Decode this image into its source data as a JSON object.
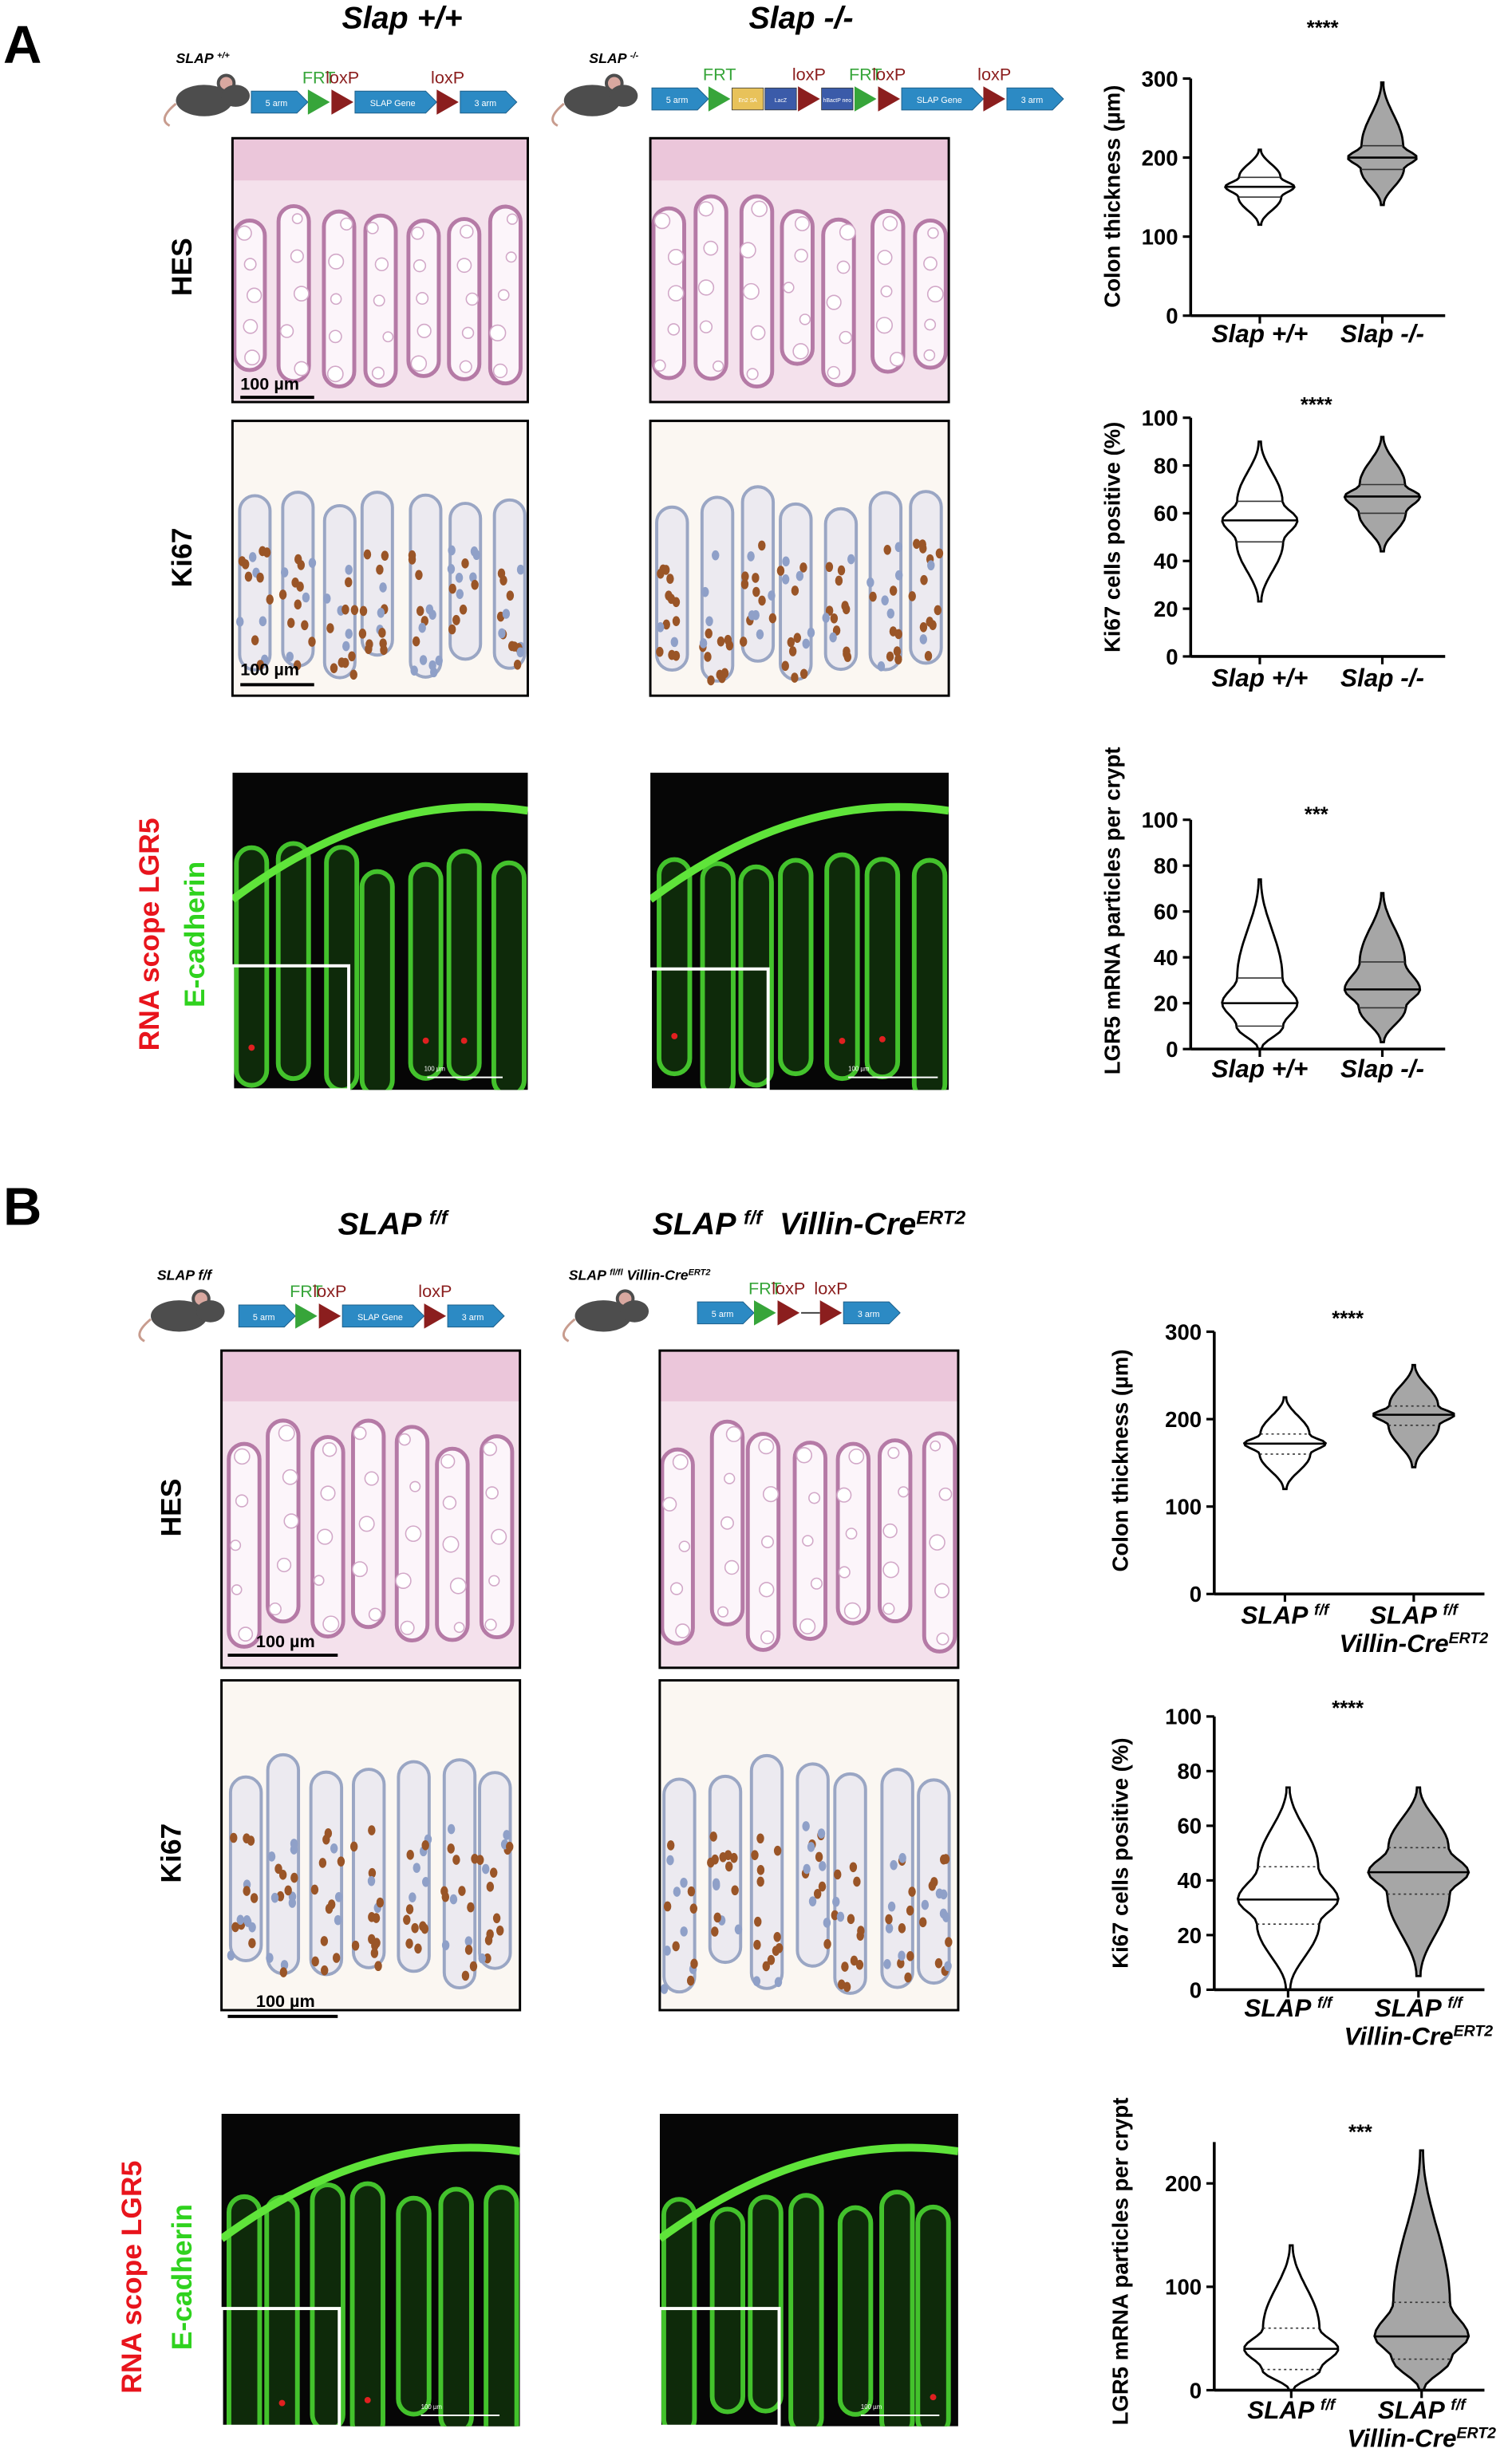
{
  "panels": [
    {
      "letter": "A",
      "columns": [
        {
          "title": [
            {
              "text": "Slap +/+"
            }
          ],
          "mouse": [
            {
              "text": "SLAP ",
              "sup": "+/+"
            }
          ],
          "construct": [
            {
              "kind": "arm",
              "label": "5 arm"
            },
            {
              "kind": "frt",
              "label": "FRT"
            },
            {
              "kind": "loxp",
              "label": "loxP"
            },
            {
              "kind": "gene",
              "label": "SLAP Gene"
            },
            {
              "kind": "loxp",
              "label": "loxP"
            },
            {
              "kind": "arm",
              "label": "3 arm"
            }
          ]
        },
        {
          "title": [
            {
              "text": "Slap -/-"
            }
          ],
          "mouse": [
            {
              "text": "SLAP ",
              "sup": "-/-"
            }
          ],
          "construct": [
            {
              "kind": "arm",
              "label": "5 arm"
            },
            {
              "kind": "frt",
              "label": "FRT"
            },
            {
              "kind": "box",
              "label": "En2 SA",
              "color": "#e8c25a"
            },
            {
              "kind": "box",
              "label": "LacZ",
              "color": "#3b5ba9"
            },
            {
              "kind": "loxp",
              "label": "loxP"
            },
            {
              "kind": "box",
              "label": "hBactP neo",
              "color": "#3b5ba9"
            },
            {
              "kind": "frt",
              "label": "FRT"
            },
            {
              "kind": "loxp",
              "label": "loxP"
            },
            {
              "kind": "gene",
              "label": "SLAP Gene"
            },
            {
              "kind": "loxp",
              "label": "loxP"
            },
            {
              "kind": "arm",
              "label": "3 arm"
            }
          ]
        }
      ],
      "rows": [
        [
          [
            {
              "text": "HES"
            }
          ]
        ],
        [
          [
            {
              "text": "Ki67"
            }
          ]
        ],
        [
          [
            {
              "text": "RNA scope LGR5",
              "color": "#e8141c"
            }
          ],
          [
            {
              "text": "E-cadherin",
              "color": "#2fd21e"
            }
          ]
        ]
      ],
      "scale_bars": [
        "100 µm",
        "100 µm",
        "100 µm",
        "100 µm"
      ]
    },
    {
      "letter": "B",
      "columns": [
        {
          "title": [
            {
              "text": "SLAP ",
              "sup": "f/f"
            }
          ],
          "mouse": [
            {
              "text": "SLAP f/f"
            }
          ],
          "construct": [
            {
              "kind": "arm",
              "label": "5 arm"
            },
            {
              "kind": "frt",
              "label": "FRT"
            },
            {
              "kind": "loxp",
              "label": "loxP"
            },
            {
              "kind": "gene",
              "label": "SLAP Gene"
            },
            {
              "kind": "loxp",
              "label": "loxP"
            },
            {
              "kind": "arm",
              "label": "3 arm"
            }
          ]
        },
        {
          "title": [
            {
              "text": "SLAP ",
              "sup": "f/f"
            },
            {
              "text": "  Villin-Cre",
              "sup": "ERT2"
            }
          ],
          "mouse": [
            {
              "text": "SLAP ",
              "sup": "fl/fl"
            },
            {
              "text": " Villin-Cre",
              "sup": "ERT2"
            }
          ],
          "construct": [
            {
              "kind": "arm",
              "label": "5 arm"
            },
            {
              "kind": "frt",
              "label": "FRT"
            },
            {
              "kind": "loxp",
              "label": "loxP"
            },
            {
              "kind": "loxp",
              "label": "loxP"
            },
            {
              "kind": "arm",
              "label": "3 arm"
            }
          ]
        }
      ],
      "rows": [
        [
          [
            {
              "text": "HES"
            }
          ]
        ],
        [
          [
            {
              "text": "Ki67"
            }
          ]
        ],
        [
          [
            {
              "text": "RNA scope LGR5",
              "color": "#e8141c"
            }
          ],
          [
            {
              "text": "E-cadherin",
              "color": "#2fd21e"
            }
          ]
        ]
      ],
      "scale_bars": [
        "100 µm",
        "100 µm",
        "100 µm",
        "100 µm"
      ]
    }
  ],
  "chart_data": [
    {
      "type": "violin",
      "y_label": "Colon thickness (µm)",
      "annotation": "****",
      "categories": [
        [
          [
            {
              "text": "Slap +/+"
            }
          ]
        ],
        [
          [
            {
              "text": "Slap -/-"
            }
          ]
        ]
      ],
      "min": [
        115,
        140
      ],
      "q1": [
        150,
        185
      ],
      "median": [
        163,
        200
      ],
      "q3": [
        175,
        215
      ],
      "max": [
        210,
        295
      ],
      "colors": [
        "#ffffff",
        "#a6a6a6"
      ],
      "quartile_style": "solid",
      "ylim": [
        0,
        300
      ],
      "yticks": [
        0,
        100,
        200,
        300
      ]
    },
    {
      "type": "violin",
      "y_label": "Ki67 cells positive (%)",
      "annotation": "****",
      "categories": [
        [
          [
            {
              "text": "Slap +/+"
            }
          ]
        ],
        [
          [
            {
              "text": "Slap -/-"
            }
          ]
        ]
      ],
      "min": [
        23,
        44
      ],
      "q1": [
        48,
        60
      ],
      "median": [
        57,
        67
      ],
      "q3": [
        65,
        72
      ],
      "max": [
        90,
        92
      ],
      "colors": [
        "#ffffff",
        "#a6a6a6"
      ],
      "quartile_style": "solid",
      "ylim": [
        0,
        100
      ],
      "yticks": [
        0,
        20,
        40,
        60,
        80,
        100
      ]
    },
    {
      "type": "violin",
      "y_label": "LGR5 mRNA particles per crypt",
      "annotation": "***",
      "categories": [
        [
          [
            {
              "text": "Slap +/+"
            }
          ]
        ],
        [
          [
            {
              "text": "Slap -/-"
            }
          ]
        ]
      ],
      "min": [
        0,
        3
      ],
      "q1": [
        10,
        18
      ],
      "median": [
        20,
        26
      ],
      "q3": [
        31,
        38
      ],
      "max": [
        74,
        68
      ],
      "colors": [
        "#ffffff",
        "#a6a6a6"
      ],
      "quartile_style": "solid",
      "ylim": [
        0,
        100
      ],
      "yticks": [
        0,
        20,
        40,
        60,
        80,
        100
      ]
    },
    {
      "type": "violin",
      "y_label": "Colon thickness (µm)",
      "annotation": "****",
      "categories": [
        [
          [
            {
              "text": "SLAP ",
              "sup": "f/f"
            }
          ]
        ],
        [
          [
            {
              "text": "SLAP ",
              "sup": "f/f"
            }
          ],
          [
            {
              "text": "Villin-Cre",
              "sup": "ERT2"
            }
          ]
        ]
      ],
      "min": [
        120,
        145
      ],
      "q1": [
        160,
        193
      ],
      "median": [
        172,
        205
      ],
      "q3": [
        183,
        215
      ],
      "max": [
        225,
        262
      ],
      "colors": [
        "#ffffff",
        "#a6a6a6"
      ],
      "quartile_style": "dotted",
      "ylim": [
        0,
        300
      ],
      "yticks": [
        0,
        100,
        200,
        300
      ]
    },
    {
      "type": "violin",
      "y_label": "Ki67 cells positive (%)",
      "annotation": "****",
      "categories": [
        [
          [
            {
              "text": "SLAP ",
              "sup": "f/f"
            }
          ]
        ],
        [
          [
            {
              "text": "SLAP ",
              "sup": "f/f"
            }
          ],
          [
            {
              "text": "Villin-Cre",
              "sup": "ERT2"
            }
          ]
        ]
      ],
      "min": [
        0,
        5
      ],
      "q1": [
        24,
        35
      ],
      "median": [
        33,
        43
      ],
      "q3": [
        45,
        52
      ],
      "max": [
        74,
        74
      ],
      "colors": [
        "#ffffff",
        "#a6a6a6"
      ],
      "quartile_style": "dotted",
      "ylim": [
        0,
        100
      ],
      "yticks": [
        0,
        20,
        40,
        60,
        80,
        100
      ]
    },
    {
      "type": "violin",
      "y_label": "LGR5 mRNA particles per crypt",
      "annotation": "***",
      "categories": [
        [
          [
            {
              "text": "SLAP ",
              "sup": "f/f"
            }
          ]
        ],
        [
          [
            {
              "text": "SLAP ",
              "sup": "f/f"
            }
          ],
          [
            {
              "text": "Villin-Cre",
              "sup": "ERT2"
            }
          ]
        ]
      ],
      "min": [
        0,
        0
      ],
      "q1": [
        20,
        30
      ],
      "median": [
        40,
        52
      ],
      "q3": [
        60,
        85
      ],
      "max": [
        140,
        232
      ],
      "colors": [
        "#ffffff",
        "#a6a6a6"
      ],
      "quartile_style": "dotted",
      "ylim": [
        0,
        240
      ],
      "yticks": [
        0,
        100,
        200
      ]
    }
  ]
}
